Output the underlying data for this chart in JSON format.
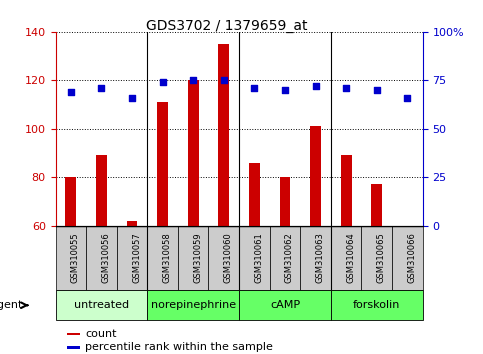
{
  "title": "GDS3702 / 1379659_at",
  "samples": [
    "GSM310055",
    "GSM310056",
    "GSM310057",
    "GSM310058",
    "GSM310059",
    "GSM310060",
    "GSM310061",
    "GSM310062",
    "GSM310063",
    "GSM310064",
    "GSM310065",
    "GSM310066"
  ],
  "count_values": [
    80,
    89,
    62,
    111,
    120,
    135,
    86,
    80,
    101,
    89,
    77,
    60
  ],
  "percentile_values": [
    69,
    71,
    66,
    74,
    75,
    75,
    71,
    70,
    72,
    71,
    70,
    66
  ],
  "ylim_left": [
    60,
    140
  ],
  "ylim_right": [
    0,
    100
  ],
  "yticks_left": [
    60,
    80,
    100,
    120,
    140
  ],
  "yticks_right": [
    0,
    25,
    50,
    75,
    100
  ],
  "ytick_labels_right": [
    "0",
    "25",
    "50",
    "75",
    "100%"
  ],
  "bar_color": "#cc0000",
  "dot_color": "#0000cc",
  "bar_bottom": 60,
  "groups": [
    {
      "label": "untreated",
      "start": 0,
      "end": 3,
      "color": "#ccffcc"
    },
    {
      "label": "norepinephrine",
      "start": 3,
      "end": 6,
      "color": "#66ff66"
    },
    {
      "label": "cAMP",
      "start": 6,
      "end": 9,
      "color": "#66ff66"
    },
    {
      "label": "forskolin",
      "start": 9,
      "end": 12,
      "color": "#66ff66"
    }
  ],
  "group_dividers": [
    3,
    6,
    9
  ],
  "legend_count_label": "count",
  "legend_pct_label": "percentile rank within the sample",
  "agent_label": "agent",
  "xlabel_bg": "#cccccc",
  "background_color": "#ffffff",
  "plot_xlim": [
    -0.5,
    11.5
  ],
  "bar_width": 0.35
}
